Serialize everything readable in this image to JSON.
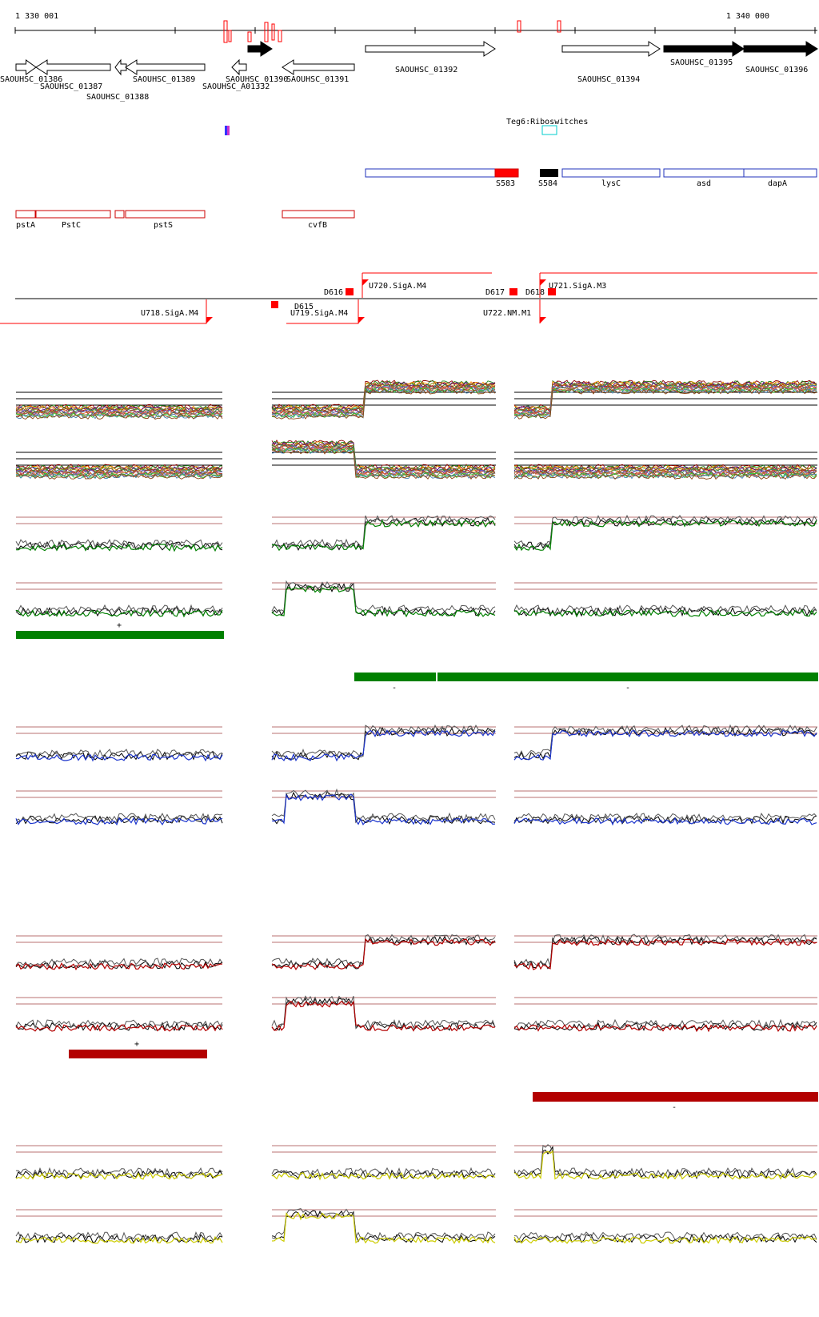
{
  "coords": {
    "start": "1 330 001",
    "end": "1 340 000"
  },
  "genes": [
    {
      "id": "g1386",
      "label": "SAOUHSC_01386",
      "strand": "+",
      "filled": false
    },
    {
      "id": "g1387",
      "label": "SAOUHSC_01387",
      "strand": "-",
      "filled": false
    },
    {
      "id": "g1388",
      "label": "SAOUHSC_01388",
      "strand": "-",
      "filled": false
    },
    {
      "id": "g1389",
      "label": "SAOUHSC_01389",
      "strand": "-",
      "filled": false
    },
    {
      "id": "g1390",
      "label": "SAOUHSC_01390",
      "strand": "+",
      "filled": true
    },
    {
      "id": "gA1332",
      "label": "SAOUHSC_A01332",
      "strand": "-",
      "filled": false
    },
    {
      "id": "g1391",
      "label": "SAOUHSC_01391",
      "strand": "-",
      "filled": false
    },
    {
      "id": "g1392",
      "label": "SAOUHSC_01392",
      "strand": "+",
      "filled": false
    },
    {
      "id": "g1394",
      "label": "SAOUHSC_01394",
      "strand": "+",
      "filled": false
    },
    {
      "id": "g1395",
      "label": "SAOUHSC_01395",
      "strand": "+",
      "filled": true
    },
    {
      "id": "g1396",
      "label": "SAOUHSC_01396",
      "strand": "+",
      "filled": true
    }
  ],
  "riboswitch_label": "Teg6:Riboswitches",
  "operon_features": [
    "S583",
    "S584",
    "lysC",
    "asd",
    "dapA"
  ],
  "neg_genes": [
    "pstA",
    "PstC",
    "pstS",
    "cvfB"
  ],
  "transcription": [
    "D616",
    "U720.SigA.M4",
    "D617",
    "D618",
    "U721.SigA.M3",
    "U718.SigA.M4",
    "D615",
    "U719.SigA.M4",
    "U722.NM.M1"
  ],
  "strand_marks": {
    "plus": "+",
    "minus": "-"
  },
  "colors": {
    "green": "#008000",
    "blue": "#1a33cc",
    "red": "#cc1111",
    "darkred": "#b30000",
    "yellow": "#cccc00",
    "threshold": "#a04040",
    "feature_red": "#ff0000",
    "operon_blue": "#2233bb"
  }
}
